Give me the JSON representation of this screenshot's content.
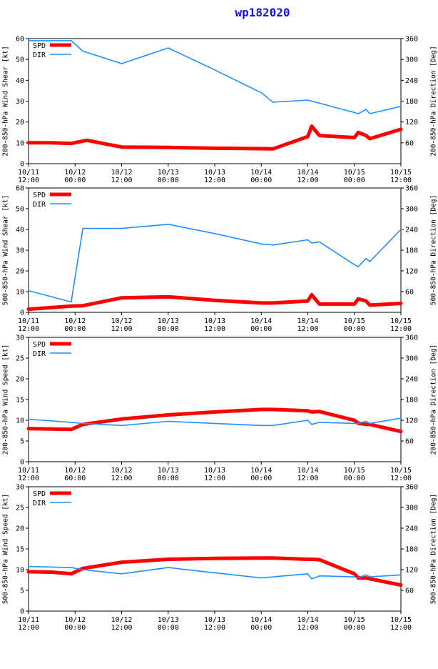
{
  "title": "wp182020",
  "colors": {
    "spd": "#ff0000",
    "dir": "#1e90ff",
    "title": "#1010ff"
  },
  "legend": {
    "spd": "SPD",
    "dir": "DIR"
  },
  "x_ticks": [
    {
      "t": 0,
      "l1": "10/11",
      "l2": "12:00"
    },
    {
      "t": 12,
      "l1": "10/12",
      "l2": "00:00"
    },
    {
      "t": 24,
      "l1": "10/12",
      "l2": "12:00"
    },
    {
      "t": 36,
      "l1": "10/13",
      "l2": "00:00"
    },
    {
      "t": 48,
      "l1": "10/13",
      "l2": "12:00"
    },
    {
      "t": 60,
      "l1": "10/14",
      "l2": "00:00"
    },
    {
      "t": 72,
      "l1": "10/14",
      "l2": "12:00"
    },
    {
      "t": 84,
      "l1": "10/15",
      "l2": "00:00"
    },
    {
      "t": 96,
      "l1": "10/15",
      "l2": "12:00"
    }
  ],
  "chart_data": [
    {
      "type": "line",
      "ylabel": "200-850-hPa Wind Shear [kt]",
      "y2label": "200-850-hPa Direction [Deg]",
      "ylim": [
        0,
        60
      ],
      "yticks": [
        0,
        10,
        20,
        30,
        40,
        50,
        60
      ],
      "y2lim": [
        0,
        360
      ],
      "y2ticks": [
        60,
        120,
        180,
        240,
        300,
        360
      ],
      "grid": false,
      "legend_position": "top-left",
      "series": [
        {
          "name": "SPD",
          "axis": "left",
          "points": [
            [
              0,
              10
            ],
            [
              6,
              10
            ],
            [
              11,
              9.7
            ],
            [
              15,
              11.2
            ],
            [
              24,
              8
            ],
            [
              36,
              7.8
            ],
            [
              48,
              7.4
            ],
            [
              60,
              7.2
            ],
            [
              63,
              7.1
            ],
            [
              72,
              13
            ],
            [
              73,
              18
            ],
            [
              75,
              13.5
            ],
            [
              84,
              12.5
            ],
            [
              85,
              15
            ],
            [
              87,
              13.5
            ],
            [
              88,
              12
            ],
            [
              96,
              16.5
            ]
          ]
        },
        {
          "name": "DIR",
          "axis": "right",
          "points": [
            [
              0,
              354
            ],
            [
              6,
              354
            ],
            [
              11,
              354
            ],
            [
              14,
              324
            ],
            [
              24,
              288
            ],
            [
              36,
              333
            ],
            [
              48,
              270
            ],
            [
              60,
              204
            ],
            [
              63,
              177
            ],
            [
              72,
              183
            ],
            [
              73,
              180
            ],
            [
              75,
              174
            ],
            [
              84,
              147
            ],
            [
              85,
              144
            ],
            [
              87,
              156
            ],
            [
              88,
              144
            ],
            [
              96,
              165
            ]
          ]
        }
      ]
    },
    {
      "type": "line",
      "ylabel": "500-850-hPa Wind Shear [kt]",
      "y2label": "500-850-hPa Direction [Deg]",
      "ylim": [
        0,
        60
      ],
      "yticks": [
        0,
        10,
        20,
        30,
        40,
        50,
        60
      ],
      "y2lim": [
        0,
        360
      ],
      "y2ticks": [
        60,
        120,
        180,
        240,
        300,
        360
      ],
      "grid": false,
      "legend_position": "top-left",
      "series": [
        {
          "name": "SPD",
          "axis": "left",
          "points": [
            [
              0,
              1.5
            ],
            [
              11,
              3
            ],
            [
              14,
              3.2
            ],
            [
              24,
              7
            ],
            [
              36,
              7.5
            ],
            [
              48,
              5.8
            ],
            [
              60,
              4.5
            ],
            [
              63,
              4.5
            ],
            [
              72,
              5.5
            ],
            [
              73,
              8.5
            ],
            [
              75,
              4
            ],
            [
              84,
              4
            ],
            [
              85,
              6.5
            ],
            [
              87,
              5.5
            ],
            [
              88,
              3.5
            ],
            [
              96,
              4.3
            ]
          ]
        },
        {
          "name": "DIR",
          "axis": "right",
          "points": [
            [
              0,
              63
            ],
            [
              11,
              30
            ],
            [
              14,
              243
            ],
            [
              24,
              243
            ],
            [
              36,
              255
            ],
            [
              48,
              228
            ],
            [
              60,
              198
            ],
            [
              63,
              195
            ],
            [
              72,
              210
            ],
            [
              73,
              201
            ],
            [
              75,
              204
            ],
            [
              84,
              138
            ],
            [
              85,
              132
            ],
            [
              87,
              156
            ],
            [
              88,
              147
            ],
            [
              96,
              240
            ]
          ]
        }
      ]
    },
    {
      "type": "line",
      "ylabel": "200-850-hPa Wind Speed [kt]",
      "y2label": "200-850-hPa Direction [Deg]",
      "ylim": [
        0,
        30
      ],
      "yticks": [
        0,
        5,
        10,
        15,
        20,
        25,
        30
      ],
      "y2lim": [
        0,
        360
      ],
      "y2ticks": [
        60,
        120,
        180,
        240,
        300,
        360
      ],
      "grid": false,
      "legend_position": "top-left",
      "series": [
        {
          "name": "SPD",
          "axis": "left",
          "points": [
            [
              0,
              8
            ],
            [
              6,
              7.9
            ],
            [
              11,
              7.8
            ],
            [
              14,
              9
            ],
            [
              24,
              10.3
            ],
            [
              36,
              11.3
            ],
            [
              48,
              12
            ],
            [
              60,
              12.6
            ],
            [
              63,
              12.6
            ],
            [
              72,
              12.3
            ],
            [
              73,
              12
            ],
            [
              75,
              12.1
            ],
            [
              84,
              10
            ],
            [
              85,
              9.3
            ],
            [
              87,
              9
            ],
            [
              88,
              9
            ],
            [
              96,
              7.3
            ]
          ]
        },
        {
          "name": "DIR",
          "axis": "right",
          "points": [
            [
              0,
              123
            ],
            [
              11,
              114
            ],
            [
              14,
              111
            ],
            [
              24,
              105
            ],
            [
              36,
              117
            ],
            [
              48,
              111
            ],
            [
              60,
              105
            ],
            [
              63,
              105
            ],
            [
              72,
              120
            ],
            [
              73,
              108
            ],
            [
              75,
              114
            ],
            [
              84,
              111
            ],
            [
              85,
              111
            ],
            [
              87,
              117
            ],
            [
              88,
              111
            ],
            [
              96,
              126
            ]
          ]
        }
      ]
    },
    {
      "type": "line",
      "ylabel": "500-850-hPa Wind Speed [kt]",
      "y2label": "500-850-hPa Direction [Deg]",
      "ylim": [
        0,
        30
      ],
      "yticks": [
        0,
        5,
        10,
        15,
        20,
        25,
        30
      ],
      "y2lim": [
        0,
        360
      ],
      "y2ticks": [
        60,
        120,
        180,
        240,
        300,
        360
      ],
      "grid": false,
      "legend_position": "top-left",
      "series": [
        {
          "name": "SPD",
          "axis": "left",
          "points": [
            [
              0,
              9.5
            ],
            [
              6,
              9.4
            ],
            [
              11,
              9
            ],
            [
              14,
              10.3
            ],
            [
              24,
              11.8
            ],
            [
              36,
              12.5
            ],
            [
              48,
              12.7
            ],
            [
              60,
              12.8
            ],
            [
              63,
              12.8
            ],
            [
              72,
              12.5
            ],
            [
              73,
              12.5
            ],
            [
              75,
              12.4
            ],
            [
              84,
              9
            ],
            [
              85,
              8
            ],
            [
              87,
              8
            ],
            [
              88,
              7.8
            ],
            [
              96,
              6.3
            ]
          ]
        },
        {
          "name": "DIR",
          "axis": "right",
          "points": [
            [
              0,
              129
            ],
            [
              11,
              126
            ],
            [
              14,
              120
            ],
            [
              24,
              108
            ],
            [
              36,
              126
            ],
            [
              48,
              111
            ],
            [
              60,
              96
            ],
            [
              63,
              99
            ],
            [
              72,
              108
            ],
            [
              73,
              93
            ],
            [
              75,
              102
            ],
            [
              84,
              99
            ],
            [
              85,
              96
            ],
            [
              87,
              105
            ],
            [
              88,
              99
            ],
            [
              96,
              105
            ]
          ]
        }
      ]
    }
  ]
}
